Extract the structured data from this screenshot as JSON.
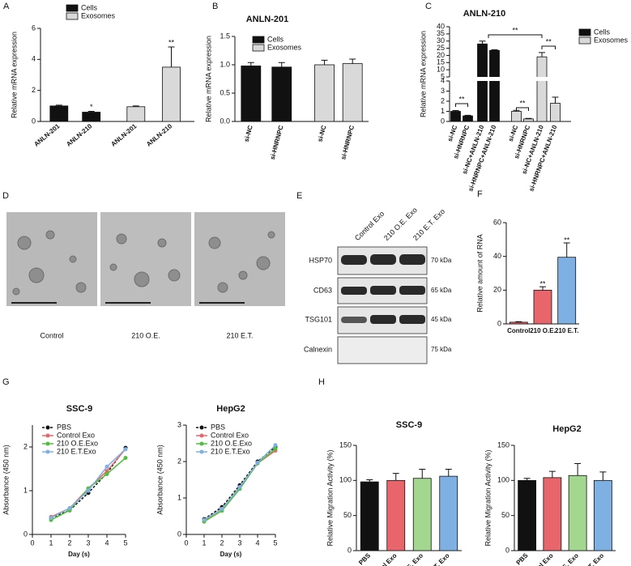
{
  "chart_data": [
    {
      "type": "bar",
      "panel": "A",
      "ylabel": "Relative mRNA expression",
      "categories": [
        "ANLN-201",
        "ANLN-210",
        "ANLN-201",
        "ANLN-210"
      ],
      "values": [
        1.0,
        0.6,
        0.95,
        3.5
      ],
      "errors": [
        0.05,
        0.05,
        0.05,
        1.3
      ],
      "colors": [
        "#111111",
        "#111111",
        "#d9d9d9",
        "#d9d9d9"
      ],
      "legend": [
        {
          "name": "Cells",
          "color": "#111111"
        },
        {
          "name": "Exosomes",
          "color": "#d9d9d9"
        }
      ],
      "annotations": [
        "*",
        "**"
      ],
      "ylim": [
        0,
        6
      ],
      "yticks": [
        0,
        2,
        4,
        6
      ]
    },
    {
      "type": "bar",
      "panel": "B",
      "title": "ANLN-201",
      "ylabel": "Relative mRNA expression",
      "categories": [
        "si-NC",
        "si-HNRNPC",
        "si-NC",
        "si-HNRNPC"
      ],
      "values": [
        0.98,
        0.96,
        1.0,
        1.02
      ],
      "errors": [
        0.06,
        0.08,
        0.08,
        0.08
      ],
      "colors": [
        "#111111",
        "#111111",
        "#d9d9d9",
        "#d9d9d9"
      ],
      "legend": [
        {
          "name": "Cells",
          "color": "#111111"
        },
        {
          "name": "Exosomes",
          "color": "#d9d9d9"
        }
      ],
      "ylim": [
        0,
        1.5
      ],
      "yticks": [
        {
          "value": 0,
          "label": "0.0"
        },
        0.5,
        {
          "value": 1,
          "label": "1.0"
        },
        1.5
      ]
    },
    {
      "type": "bar",
      "panel": "C",
      "title": "ANLN-210",
      "ylabel": "Relative mRNA expression",
      "categories": [
        "si-NC",
        "si-HNRNPC",
        "si-NC+ANLN-210",
        "si-HNRNPC+ANLN-210",
        "si-NC",
        "si-HNRNPC",
        "si-NC+ANLN-210",
        "si-HNRNPC+ANLN-210"
      ],
      "values": [
        1.0,
        0.55,
        28,
        23.5,
        1.0,
        0.25,
        19,
        1.8
      ],
      "errors": [
        0.08,
        0.06,
        2,
        0.5,
        0.1,
        0.05,
        3,
        0.6
      ],
      "colors": [
        "#111111",
        "#111111",
        "#111111",
        "#111111",
        "#d9d9d9",
        "#d9d9d9",
        "#d9d9d9",
        "#d9d9d9"
      ],
      "legend": [
        {
          "name": "Cells",
          "color": "#111111"
        },
        {
          "name": "Exosomes",
          "color": "#d9d9d9"
        }
      ],
      "annotations": [
        "**",
        "**",
        "**",
        "**"
      ],
      "ylim": [
        0,
        40
      ],
      "ybreak": [
        4,
        5
      ],
      "yticks": [
        0,
        1,
        2,
        3,
        4,
        5,
        10,
        15,
        20,
        25,
        30,
        35,
        40
      ]
    },
    {
      "type": "bar",
      "panel": "F",
      "ylabel": "Relative amount of RNA",
      "categories": [
        "Control",
        "210 O.E.",
        "210 E.T."
      ],
      "values": [
        1,
        20,
        39.5
      ],
      "errors": [
        0.3,
        2,
        8.5
      ],
      "colors": [
        "#e8666b",
        "#e8666b",
        "#7eb0e4"
      ],
      "annotations": [
        "**",
        "**"
      ],
      "ylim": [
        0,
        60
      ],
      "yticks": [
        0,
        20,
        40,
        60
      ]
    },
    {
      "type": "line",
      "panel": "G",
      "title": "SSC-9",
      "xlabel": "Day (s)",
      "ylabel": "Absorbance (450 nm)",
      "x": [
        1,
        2,
        3,
        4,
        5
      ],
      "xlim": [
        0,
        5
      ],
      "xticks": [
        0,
        1,
        2,
        3,
        4,
        5
      ],
      "ylim": [
        0,
        2.5
      ],
      "yticks": [
        0,
        1,
        2
      ],
      "series": [
        {
          "name": "PBS",
          "color": "#111111",
          "dashed": true,
          "values": [
            0.38,
            0.55,
            0.95,
            1.4,
            1.98
          ]
        },
        {
          "name": "Control Exo",
          "color": "#e8666b",
          "values": [
            0.4,
            0.6,
            1.05,
            1.45,
            1.95
          ]
        },
        {
          "name": "210 O.E.Exo",
          "color": "#4fc03a",
          "values": [
            0.33,
            0.55,
            1.05,
            1.38,
            1.75
          ]
        },
        {
          "name": "210 E.T.Exo",
          "color": "#7eb0e4",
          "values": [
            0.38,
            0.6,
            1.0,
            1.55,
            1.95
          ]
        }
      ]
    },
    {
      "type": "line",
      "title": "HepG2",
      "xlabel": "Day (s)",
      "ylabel": "Absorbance (450 nm)",
      "x": [
        1,
        2,
        3,
        4,
        5
      ],
      "xlim": [
        0,
        5
      ],
      "xticks": [
        0,
        1,
        2,
        3,
        4,
        5
      ],
      "ylim": [
        0,
        3
      ],
      "yticks": [
        0,
        1,
        2,
        3
      ],
      "series": [
        {
          "name": "PBS",
          "color": "#111111",
          "dashed": true,
          "values": [
            0.42,
            0.75,
            1.35,
            2.0,
            2.4
          ]
        },
        {
          "name": "Control Exo",
          "color": "#e8666b",
          "values": [
            0.38,
            0.7,
            1.3,
            1.95,
            2.3
          ]
        },
        {
          "name": "210 O.E.Exo",
          "color": "#4fc03a",
          "values": [
            0.35,
            0.65,
            1.25,
            1.95,
            2.35
          ]
        },
        {
          "name": "210 E.T.Exo",
          "color": "#7eb0e4",
          "values": [
            0.4,
            0.7,
            1.3,
            1.97,
            2.45
          ]
        }
      ]
    },
    {
      "type": "bar",
      "panel": "H",
      "title": "SSC-9",
      "ylabel": "Relative Migration Activity (%)",
      "categories": [
        "PBS",
        "Control Exo",
        "210 O.E. Exo",
        "210 E.T. Exo"
      ],
      "values": [
        98,
        100,
        103,
        106
      ],
      "errors": [
        3,
        10,
        13,
        10
      ],
      "colors": [
        "#111111",
        "#e8666b",
        "#a3d68f",
        "#7eb0e4"
      ],
      "ylim": [
        0,
        150
      ],
      "yticks": [
        0,
        50,
        100,
        150
      ]
    },
    {
      "type": "bar",
      "title": "HepG2",
      "ylabel": "Relative Migration Activity (%)",
      "categories": [
        "PBS",
        "Control Exo",
        "210 O.E. Exo",
        "210 E.T. Exo"
      ],
      "values": [
        100,
        104,
        107,
        100
      ],
      "errors": [
        3,
        9,
        17,
        12
      ],
      "colors": [
        "#111111",
        "#e8666b",
        "#a3d68f",
        "#7eb0e4"
      ],
      "ylim": [
        0,
        150
      ],
      "yticks": [
        0,
        50,
        100,
        150
      ]
    }
  ],
  "images": {
    "panel": "D",
    "captions": [
      "Control",
      "210 O.E.",
      "210 E.T."
    ]
  },
  "blot": {
    "panel": "E",
    "columns": [
      "Control Exo",
      "210 O.E. Exo",
      "210 E.T. Exo"
    ],
    "rows": [
      {
        "protein": "HSP70",
        "size": "70 kDa"
      },
      {
        "protein": "CD63",
        "size": "65 kDa"
      },
      {
        "protein": "TSG101",
        "size": "45 kDa"
      },
      {
        "protein": "Calnexin",
        "size": "75 kDa"
      }
    ]
  }
}
